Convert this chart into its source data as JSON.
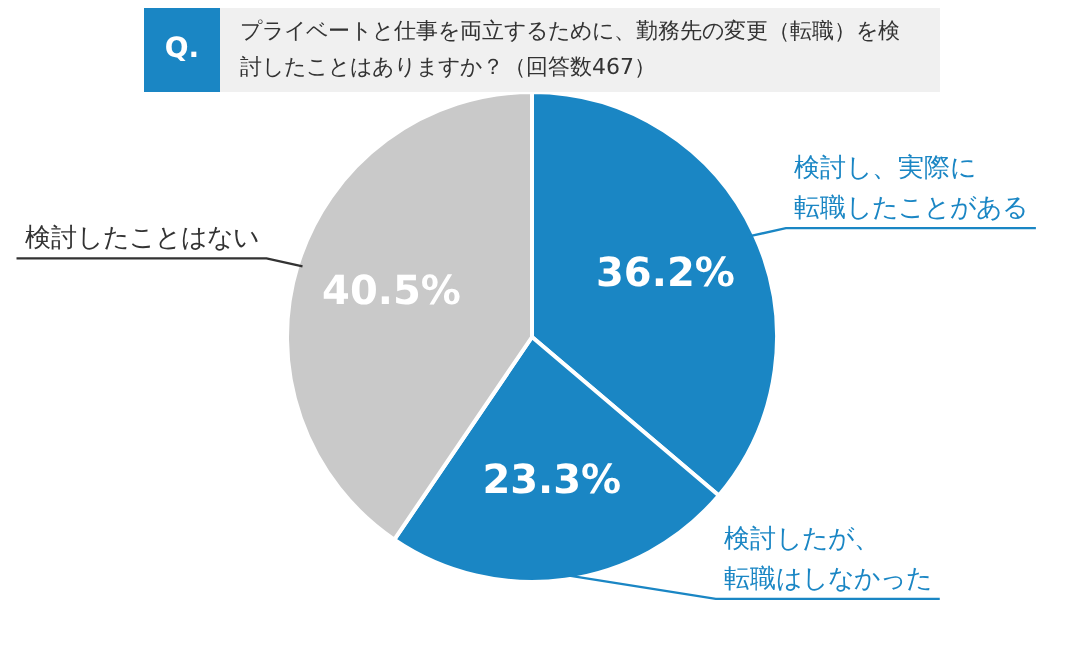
{
  "chart_data": {
    "type": "pie",
    "title": "プライベートと仕事を両立するために、勤務先の変更（転職）を検討したことはありますか？（回答数467）",
    "annotations": [
      "Q."
    ],
    "categories": [
      "検討し、実際に転職したことがある",
      "検討したが、転職はしなかった",
      "検討したことはない"
    ],
    "values": [
      36.2,
      23.3,
      40.5
    ],
    "value_labels": [
      "36.2%",
      "23.3%",
      "40.5%"
    ],
    "colors": [
      "#1a86c4",
      "#1a86c4",
      "#c9c9c9"
    ],
    "legend": false
  }
}
